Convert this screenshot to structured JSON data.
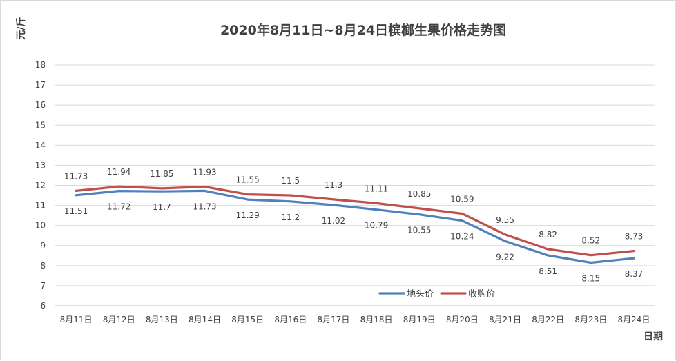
{
  "chart_data": {
    "type": "line",
    "title": "2020年8月11日~8月24日槟榔生果价格走势图",
    "xlabel": "日期",
    "ylabel": "元/斤",
    "ylim": [
      6,
      18
    ],
    "yticks": [
      "6",
      "7",
      "8",
      "9",
      "10",
      "11",
      "12",
      "13",
      "14",
      "15",
      "16",
      "17",
      "18"
    ],
    "grid": true,
    "legend_position": "bottom-right",
    "categories": [
      "8月11日",
      "8月12日",
      "8月13日",
      "8月14日",
      "8月15日",
      "8月16日",
      "8月17日",
      "8月18日",
      "8月19日",
      "8月20日",
      "8月21日",
      "8月22日",
      "8月23日",
      "8月24日"
    ],
    "series": [
      {
        "name": "地头价",
        "color": "#4f81bd",
        "values": [
          11.51,
          11.72,
          11.7,
          11.73,
          11.29,
          11.2,
          11.02,
          10.79,
          10.55,
          10.24,
          9.22,
          8.51,
          8.15,
          8.37
        ],
        "labels": [
          "11.51",
          "11.72",
          "11.7",
          "11.73",
          "11.29",
          "11.2",
          "11.02",
          "10.79",
          "10.55",
          "10.24",
          "9.22",
          "8.51",
          "8.15",
          "8.37"
        ]
      },
      {
        "name": "收购价",
        "color": "#c0504d",
        "values": [
          11.73,
          11.94,
          11.85,
          11.93,
          11.55,
          11.5,
          11.3,
          11.11,
          10.85,
          10.59,
          9.55,
          8.82,
          8.52,
          8.73
        ],
        "labels": [
          "11.73",
          "11.94",
          "11.85",
          "11.93",
          "11.55",
          "11.5",
          "11.3",
          "11.11",
          "10.85",
          "10.59",
          "9.55",
          "8.82",
          "8.52",
          "8.73"
        ]
      }
    ]
  }
}
